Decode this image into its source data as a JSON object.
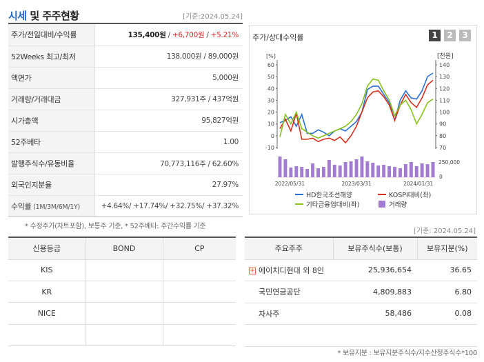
{
  "header": {
    "title_accent": "시세",
    "title_rest": " 및 주주현황",
    "date": "[기준:2024.05.24]"
  },
  "summary": {
    "price_row": {
      "label": "주가/전일대비/수익률",
      "price": "135,400원",
      "sep1": " / ",
      "change": "+6,700원",
      "sep2": " / ",
      "rate": "+5.21%"
    },
    "rows": [
      {
        "label": "52Weeks 최고/최저",
        "value": "138,000원 / 89,000원"
      },
      {
        "label": "액면가",
        "value": "5,000원"
      },
      {
        "label": "거래량/거래대금",
        "value": "327,931주 / 437억원"
      },
      {
        "label": "시가총액",
        "value": "95,827억원"
      },
      {
        "label": "52주베타",
        "value": "1.00"
      },
      {
        "label": "발행주식수/유동비율",
        "value": "70,773,116주 / 62.60%"
      },
      {
        "label": "외국인지분율",
        "value": "27.97%"
      }
    ],
    "returns_row": {
      "label": "수익률",
      "label_sub": " (1M/3M/6M/1Y)",
      "value": "+4.64%/ +17.74%/ +32.75%/ +37.32%"
    },
    "note": "* 수정주가(차트포함), 보통주 기준, * 52주베타: 주간수익률 기준"
  },
  "chart_panel": {
    "title": "주가/상대수익률",
    "tabs": [
      "1",
      "2",
      "3"
    ],
    "legend": [
      "HD한국조선해양",
      "KOSPI대비(좌)",
      "기타금융업대비(좌)",
      "거래량"
    ]
  },
  "chart_data": {
    "type": "line",
    "left_axis": {
      "label": "[%]",
      "ticks": [
        "60",
        "50",
        "40",
        "30",
        "20",
        "10",
        "0",
        "-10"
      ],
      "range": [
        -10,
        60
      ]
    },
    "right_axis": {
      "label": "[천원]",
      "ticks": [
        "140",
        "130",
        "120",
        "110",
        "100",
        "90",
        "80",
        "70"
      ],
      "range": [
        70,
        140
      ]
    },
    "volume_axis": {
      "ticks": [
        "250,000",
        "0"
      ],
      "range": [
        0,
        500000
      ]
    },
    "x_tick_labels": [
      "2022/05/31",
      "2023/03/31",
      "2024/01/31"
    ],
    "series": [
      {
        "name": "HD한국조선해양",
        "color": "#2a6fd6",
        "axis": "right",
        "values": [
          91,
          93,
          96,
          88,
          98,
          82,
          82,
          85,
          83,
          80,
          84,
          86,
          84,
          88,
          92,
          100,
          119,
          122,
          122,
          115,
          108,
          93,
          110,
          118,
          112,
          111,
          118,
          130,
          133
        ]
      },
      {
        "name": "KOSPI대비(좌)",
        "color": "#d4301c",
        "axis": "left",
        "values": [
          6,
          14,
          4,
          19,
          -3,
          -3,
          -2,
          -5,
          -3,
          -2,
          -4,
          -1,
          -6,
          0,
          8,
          20,
          32,
          37,
          38,
          33,
          26,
          13,
          26,
          35,
          28,
          24,
          32,
          43,
          47
        ]
      },
      {
        "name": "기타금융업대비(좌)",
        "color": "#86c11c",
        "axis": "left",
        "values": [
          -1,
          18,
          10,
          20,
          6,
          3,
          0,
          -2,
          0,
          2,
          4,
          6,
          8,
          12,
          18,
          27,
          42,
          48,
          47,
          38,
          30,
          17,
          26,
          30,
          22,
          10,
          18,
          28,
          31
        ]
      }
    ],
    "volume": {
      "name": "거래량",
      "color": "#a47bd2",
      "values": [
        300000,
        260000,
        140000,
        160000,
        150000,
        120000,
        200000,
        130000,
        150000,
        250000,
        180000,
        170000,
        220000,
        230000,
        260000,
        300000,
        230000,
        210000,
        170000,
        180000,
        160000,
        150000,
        130000,
        190000,
        220000,
        160000,
        200000,
        190000,
        220000
      ]
    }
  },
  "date2": "[기준: 2024.05.24]",
  "credit": {
    "headers": [
      "신용등급",
      "BOND",
      "CP"
    ],
    "rows": [
      [
        "KIS",
        "",
        ""
      ],
      [
        "KR",
        "",
        ""
      ],
      [
        "NICE",
        "",
        ""
      ],
      [
        "",
        "",
        ""
      ]
    ]
  },
  "holders": {
    "headers": [
      "주요주주",
      "보유주식수(보통)",
      "보유지분(%)"
    ],
    "rows": [
      {
        "name": "에이치디현대 외 8인",
        "shares": "25,936,654",
        "pct": "36.65"
      },
      {
        "name": "국민연금공단",
        "shares": "4,809,883",
        "pct": "6.80"
      },
      {
        "name": "자사주",
        "shares": "58,486",
        "pct": "0.08"
      },
      {
        "name": "",
        "shares": "",
        "pct": ""
      }
    ],
    "note": "* 보유지분 : 보유지분주식수/지수산정주식수*100"
  }
}
